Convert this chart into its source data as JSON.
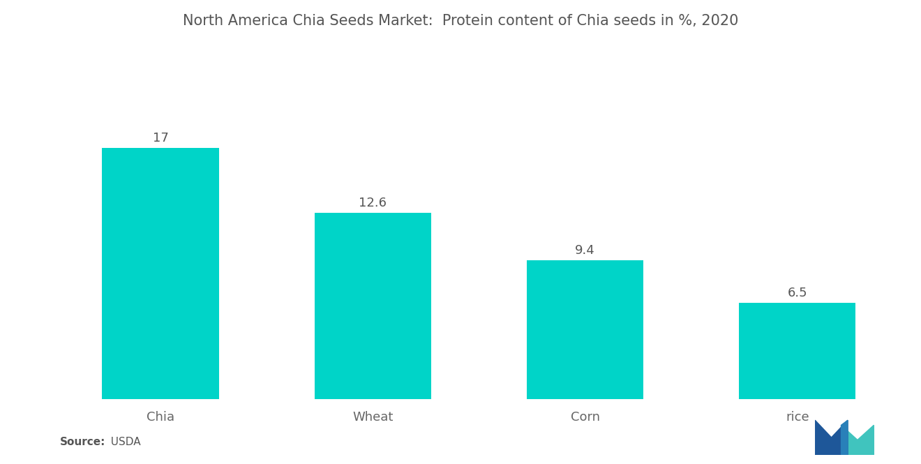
{
  "title": "North America Chia Seeds Market:  Protein content of Chia seeds in %, 2020",
  "categories": [
    "Chia",
    "Wheat",
    "Corn",
    "rice"
  ],
  "values": [
    17,
    12.6,
    9.4,
    6.5
  ],
  "bar_color": "#00D4C8",
  "background_color": "#FFFFFF",
  "source_label": "Source:",
  "source_value": "  USDA",
  "title_fontsize": 15,
  "label_fontsize": 13,
  "value_fontsize": 13,
  "source_fontsize": 11,
  "ylim": [
    0,
    22
  ],
  "bar_width": 0.55,
  "logo_colors": {
    "dark_blue": "#1E5799",
    "mid_blue": "#2980B9",
    "teal": "#40C4BE"
  }
}
